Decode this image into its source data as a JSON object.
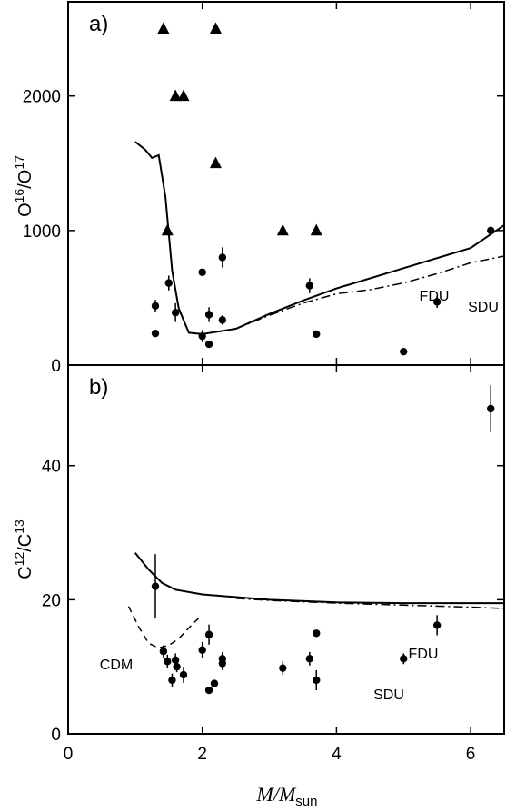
{
  "chart_data": [
    {
      "panel": "a)",
      "type": "scatter",
      "ylabel": "O16/O17",
      "ylabel_base": "O",
      "ylabel_sup1": "16",
      "ylabel_mid": "/O",
      "ylabel_sup2": "17",
      "xlim": [
        0,
        6.5
      ],
      "ylim": [
        0,
        2700
      ],
      "yticks": [
        0,
        1000,
        2000
      ],
      "yticks_labels": [
        "0",
        "1000",
        "2000"
      ],
      "triangles": [
        {
          "x": 1.42,
          "y": 2500
        },
        {
          "x": 2.2,
          "y": 2500
        },
        {
          "x": 1.6,
          "y": 2000
        },
        {
          "x": 1.72,
          "y": 2000
        },
        {
          "x": 2.2,
          "y": 1500
        },
        {
          "x": 1.48,
          "y": 1000
        },
        {
          "x": 3.2,
          "y": 1000
        },
        {
          "x": 3.7,
          "y": 1000
        }
      ],
      "points": [
        {
          "x": 1.3,
          "y": 440,
          "err": 45
        },
        {
          "x": 1.3,
          "y": 235,
          "err": 0
        },
        {
          "x": 1.5,
          "y": 610,
          "err": 55
        },
        {
          "x": 1.6,
          "y": 390,
          "err": 70
        },
        {
          "x": 2.0,
          "y": 690,
          "err": 0
        },
        {
          "x": 2.0,
          "y": 215,
          "err": 45
        },
        {
          "x": 2.1,
          "y": 375,
          "err": 55
        },
        {
          "x": 2.1,
          "y": 155,
          "err": 0
        },
        {
          "x": 2.3,
          "y": 800,
          "err": 75
        },
        {
          "x": 2.3,
          "y": 335,
          "err": 35
        },
        {
          "x": 3.6,
          "y": 590,
          "err": 55
        },
        {
          "x": 3.7,
          "y": 230,
          "err": 0
        },
        {
          "x": 5.0,
          "y": 100,
          "err": 0
        },
        {
          "x": 5.5,
          "y": 470,
          "err": 45
        },
        {
          "x": 6.3,
          "y": 1000,
          "err": 0
        }
      ],
      "series": [
        {
          "name": "FDU",
          "style": "solid",
          "x": [
            1.0,
            1.15,
            1.25,
            1.35,
            1.45,
            1.55,
            1.65,
            1.8,
            2.0,
            2.5,
            3.0,
            3.5,
            4.0,
            5.0,
            6.0,
            6.5
          ],
          "y": [
            1660,
            1600,
            1540,
            1560,
            1250,
            700,
            420,
            240,
            230,
            270,
            380,
            480,
            570,
            720,
            870,
            1040
          ]
        },
        {
          "name": "SDU",
          "style": "dashdot",
          "x": [
            2.5,
            3.0,
            3.5,
            4.0,
            4.5,
            5.0,
            5.5,
            6.0,
            6.5
          ],
          "y": [
            270,
            370,
            460,
            530,
            560,
            610,
            680,
            760,
            810
          ]
        }
      ],
      "curve_labels": [
        "FDU",
        "SDU"
      ]
    },
    {
      "panel": "b)",
      "type": "scatter",
      "ylabel": "C12/C13",
      "ylabel_base": "C",
      "ylabel_sup1": "12",
      "ylabel_mid": "/C",
      "ylabel_sup2": "13",
      "xlabel": "M/Msun",
      "xlabel_M": "M",
      "xlabel_slash": "/",
      "xlabel_M2": "M",
      "xlabel_sub": "sun",
      "xlim": [
        0,
        6.5
      ],
      "ylim": [
        0,
        55
      ],
      "xticks": [
        0,
        2,
        4,
        6
      ],
      "xticks_labels": [
        "0",
        "2",
        "4",
        "6"
      ],
      "yticks": [
        0,
        20,
        40
      ],
      "yticks_labels": [
        "0",
        "20",
        "40"
      ],
      "points": [
        {
          "x": 1.3,
          "y": 22.0,
          "err": 4.8
        },
        {
          "x": 1.42,
          "y": 12.3,
          "err": 0.9
        },
        {
          "x": 1.48,
          "y": 10.8,
          "err": 1.0
        },
        {
          "x": 1.55,
          "y": 8.0,
          "err": 1.0
        },
        {
          "x": 1.6,
          "y": 11.0,
          "err": 1.0
        },
        {
          "x": 1.62,
          "y": 10.0,
          "err": 0.8
        },
        {
          "x": 1.72,
          "y": 8.8,
          "err": 1.2
        },
        {
          "x": 2.0,
          "y": 12.5,
          "err": 1.2
        },
        {
          "x": 2.1,
          "y": 14.8,
          "err": 1.5
        },
        {
          "x": 2.1,
          "y": 6.5,
          "err": 0
        },
        {
          "x": 2.18,
          "y": 7.5,
          "err": 0.5
        },
        {
          "x": 2.3,
          "y": 11.2,
          "err": 1.0
        },
        {
          "x": 2.3,
          "y": 10.5,
          "err": 1.0
        },
        {
          "x": 3.2,
          "y": 9.8,
          "err": 1.0
        },
        {
          "x": 3.6,
          "y": 11.2,
          "err": 1.0
        },
        {
          "x": 3.7,
          "y": 15.0,
          "err": 0
        },
        {
          "x": 3.7,
          "y": 8.0,
          "err": 1.5
        },
        {
          "x": 5.0,
          "y": 11.2,
          "err": 0.8
        },
        {
          "x": 5.5,
          "y": 16.2,
          "err": 1.5
        },
        {
          "x": 6.3,
          "y": 48.5,
          "err": 3.5
        }
      ],
      "series": [
        {
          "name": "FDU",
          "style": "solid",
          "x": [
            1.0,
            1.2,
            1.4,
            1.6,
            2.0,
            3.0,
            4.0,
            5.0,
            6.0,
            6.5
          ],
          "y": [
            27,
            24.5,
            22.5,
            21.5,
            20.8,
            20.0,
            19.6,
            19.5,
            19.5,
            19.5
          ]
        },
        {
          "name": "SDU",
          "style": "dashdot",
          "x": [
            2.5,
            3.0,
            4.0,
            5.0,
            6.0,
            6.5
          ],
          "y": [
            20.2,
            19.9,
            19.5,
            19.2,
            18.9,
            18.7
          ]
        },
        {
          "name": "CDM",
          "style": "dashed",
          "x": [
            0.9,
            1.05,
            1.2,
            1.35,
            1.5,
            1.65,
            1.8,
            1.95
          ],
          "y": [
            19.0,
            16.0,
            13.5,
            12.8,
            13.2,
            14.2,
            15.8,
            17.3
          ]
        }
      ],
      "curve_labels": [
        "FDU",
        "SDU",
        "CDM"
      ]
    }
  ]
}
